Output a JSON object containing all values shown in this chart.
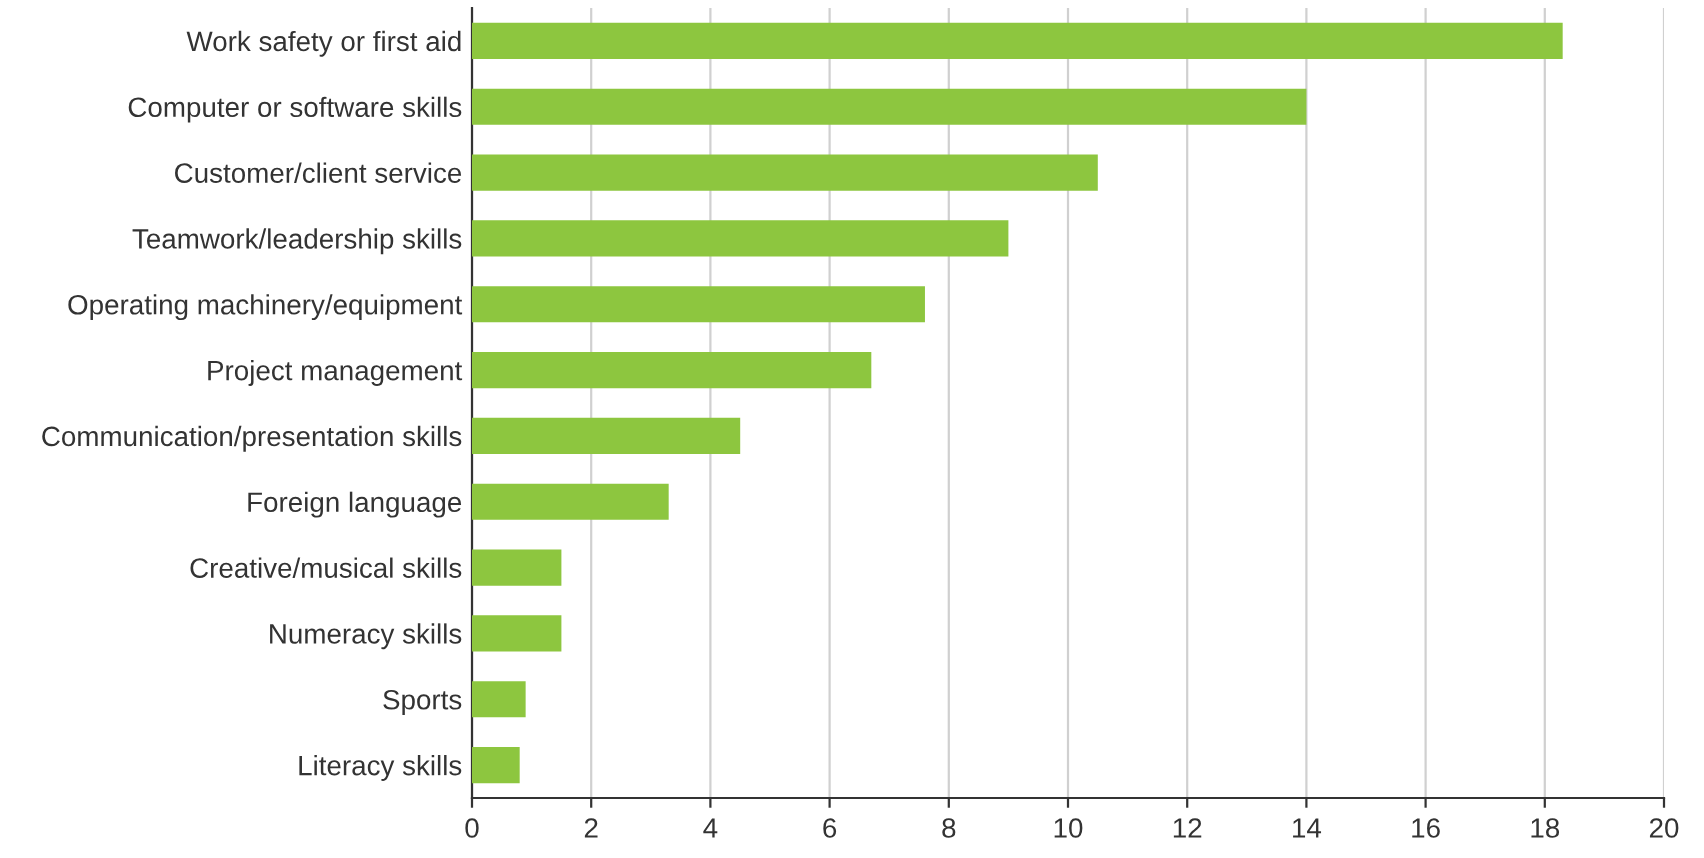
{
  "chart_data": {
    "type": "bar",
    "orientation": "horizontal",
    "categories": [
      "Work safety or first aid",
      "Computer or software skills",
      "Customer/client service",
      "Teamwork/leadership skills",
      "Operating machinery/equipment",
      "Project management",
      "Communication/presentation skills",
      "Foreign language",
      "Creative/musical skills",
      "Numeracy skills",
      "Sports",
      "Literacy skills"
    ],
    "values": [
      18.3,
      14.0,
      10.5,
      9.0,
      7.6,
      6.7,
      4.5,
      3.3,
      1.5,
      1.5,
      0.9,
      0.8
    ],
    "color": "#8dc63f",
    "xlim": [
      0,
      20
    ],
    "xticks": [
      0,
      2,
      4,
      6,
      8,
      10,
      12,
      14,
      16,
      18,
      20
    ],
    "grid": "x"
  }
}
